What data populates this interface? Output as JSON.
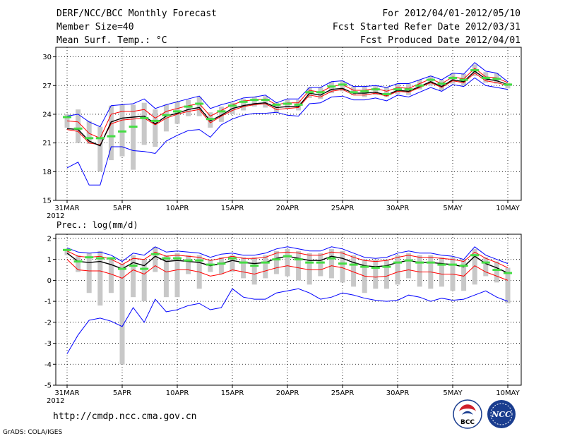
{
  "header": {
    "title": "DERF/NCC/BCC Monthly Forecast",
    "member_size": "Member Size=40",
    "variable": "Mean Surf. Temp.: °C",
    "forecast_period": "For 2012/04/01-2012/05/10",
    "fcst_started": "Fcst Started Refer Date 2012/03/31",
    "fcst_produced": "Fcst Produced Date 2012/04/01"
  },
  "footer": {
    "url": "http://cmdp.ncc.cma.gov.cn",
    "grads": "GrADS: COLA/IGES",
    "logo_bcc": "BCC",
    "logo_ncc": "NCC"
  },
  "colors": {
    "ens_mean": "#000000",
    "bounds": "#0000ff",
    "lower_pct": "#ff0000",
    "spread_bar": "#c8c8c8",
    "obs": "#44dd44",
    "grid": "#000000"
  },
  "chart_data": [
    {
      "type": "line",
      "title": "Mean Surf. Temp.: °C",
      "ylim": [
        15,
        31
      ],
      "yticks": [
        15,
        18,
        21,
        24,
        27,
        30
      ],
      "x_day_offsets": [
        0,
        5,
        10,
        15,
        20,
        25,
        30,
        35,
        40
      ],
      "xtick_labels": [
        "31MAR",
        "5APR",
        "10APR",
        "15APR",
        "20APR",
        "25APR",
        "30APR",
        "5MAY",
        "10MAY"
      ],
      "year_label": "2012",
      "series": [
        {
          "name": "max",
          "values": [
            18.4,
            19.0,
            16.6,
            16.6,
            20.6,
            20.6,
            20.2,
            20.1,
            19.9,
            21.2,
            21.8,
            22.3,
            22.4,
            21.6,
            22.9,
            23.5,
            23.9,
            24.1,
            24.1,
            24.2,
            23.9,
            23.8,
            25.1,
            25.2,
            25.8,
            25.9,
            25.5,
            25.5,
            25.7,
            25.4,
            26.0,
            25.8,
            26.3,
            26.8,
            26.4,
            27.1,
            26.9,
            27.8,
            27.0,
            26.8,
            26.6
          ],
          "role": "lower_bound"
        },
        {
          "name": "min",
          "values": [
            23.8,
            24.0,
            23.2,
            22.7,
            24.9,
            25.0,
            25.1,
            25.6,
            24.6,
            25.0,
            25.3,
            25.6,
            25.9,
            24.6,
            25.0,
            25.3,
            25.7,
            25.8,
            26.0,
            25.2,
            25.6,
            25.6,
            26.8,
            26.8,
            27.4,
            27.5,
            26.9,
            26.9,
            27.0,
            26.8,
            27.2,
            27.2,
            27.6,
            28.0,
            27.6,
            28.3,
            28.2,
            29.4,
            28.5,
            28.3,
            27.4
          ],
          "role": "upper_bound"
        },
        {
          "name": "p10",
          "values": [
            22.4,
            22.2,
            21.0,
            20.8,
            23.0,
            23.4,
            23.5,
            23.6,
            22.9,
            23.6,
            24.0,
            24.3,
            24.5,
            23.1,
            23.8,
            24.4,
            24.8,
            25.0,
            25.1,
            24.5,
            24.6,
            24.7,
            26.0,
            25.8,
            26.4,
            26.6,
            26.0,
            26.0,
            26.2,
            25.9,
            26.4,
            26.3,
            26.8,
            27.3,
            26.8,
            27.5,
            27.3,
            28.3,
            27.5,
            27.3,
            27.0
          ],
          "role": "red"
        },
        {
          "name": "p90",
          "values": [
            23.3,
            23.2,
            22.0,
            21.5,
            24.0,
            24.3,
            24.3,
            24.5,
            23.6,
            24.3,
            24.6,
            24.9,
            25.1,
            23.8,
            24.4,
            25.0,
            25.4,
            25.5,
            25.6,
            25.0,
            25.2,
            25.2,
            26.5,
            26.3,
            26.9,
            27.1,
            26.5,
            26.5,
            26.7,
            26.4,
            26.8,
            26.7,
            27.2,
            27.7,
            27.2,
            27.9,
            27.7,
            28.8,
            27.9,
            27.8,
            27.3
          ],
          "role": "red"
        },
        {
          "name": "ensemble_mean",
          "values": [
            22.5,
            22.4,
            21.2,
            20.7,
            23.2,
            23.6,
            23.7,
            23.8,
            23.0,
            23.8,
            24.1,
            24.5,
            24.7,
            23.3,
            23.9,
            24.6,
            24.9,
            25.1,
            25.2,
            24.7,
            24.8,
            24.8,
            26.2,
            26.0,
            26.6,
            26.7,
            26.2,
            26.2,
            26.3,
            26.0,
            26.5,
            26.4,
            26.9,
            27.4,
            26.9,
            27.6,
            27.4,
            28.5,
            27.7,
            27.5,
            27.1
          ],
          "role": "mean"
        }
      ],
      "bars": {
        "low": [
          22.6,
          21.0,
          20.9,
          18.0,
          19.2,
          19.6,
          18.2,
          20.8,
          20.6,
          22.2,
          23.0,
          23.8,
          23.8,
          22.6,
          23.2,
          24.0,
          24.4,
          24.8,
          24.7,
          24.2,
          24.6,
          24.4,
          25.7,
          25.6,
          26.2,
          26.4,
          26.0,
          25.8,
          26.0,
          25.8,
          26.1,
          26.0,
          26.6,
          27.0,
          26.5,
          27.2,
          27.0,
          28.0,
          27.3,
          27.2,
          26.7
        ],
        "high": [
          24.0,
          24.5,
          23.3,
          22.7,
          24.9,
          25.0,
          25.0,
          25.2,
          24.5,
          25.0,
          25.3,
          25.5,
          25.8,
          24.2,
          24.8,
          25.2,
          25.6,
          25.8,
          25.9,
          25.2,
          25.5,
          25.5,
          26.8,
          26.8,
          27.4,
          27.5,
          26.9,
          26.9,
          27.0,
          26.8,
          27.2,
          27.2,
          27.6,
          28.0,
          27.6,
          28.3,
          28.2,
          29.2,
          28.4,
          28.3,
          27.3
        ]
      },
      "obs": [
        23.7,
        22.5,
        21.5,
        21.5,
        21.7,
        22.2,
        22.7,
        23.6,
        23.3,
        23.9,
        24.3,
        24.8,
        25.1,
        23.5,
        24.3,
        24.9,
        25.3,
        25.5,
        25.5,
        25.0,
        25.1,
        25.0,
        26.3,
        26.3,
        26.9,
        27.1,
        26.3,
        26.4,
        26.6,
        26.1,
        26.6,
        26.6,
        27.0,
        27.6,
        27.2,
        27.8,
        27.6,
        28.6,
        27.8,
        27.7,
        27.1
      ]
    },
    {
      "type": "line",
      "title": "Prec.: log(mm/d)",
      "ylim": [
        -5,
        2.2
      ],
      "yticks": [
        -5,
        -4,
        -3,
        -2,
        -1,
        0,
        1,
        2
      ],
      "x_day_offsets": [
        0,
        5,
        10,
        15,
        20,
        25,
        30,
        35,
        40
      ],
      "xtick_labels": [
        "31MAR",
        "5APR",
        "10APR",
        "15APR",
        "20APR",
        "25APR",
        "30APR",
        "5MAY",
        "10MAY"
      ],
      "year_label": "2012",
      "series": [
        {
          "name": "max",
          "values": [
            1.55,
            1.35,
            1.3,
            1.35,
            1.2,
            0.9,
            1.3,
            1.2,
            1.6,
            1.35,
            1.4,
            1.35,
            1.3,
            1.1,
            1.25,
            1.3,
            1.2,
            1.2,
            1.3,
            1.5,
            1.6,
            1.5,
            1.4,
            1.4,
            1.6,
            1.5,
            1.3,
            1.1,
            1.05,
            1.1,
            1.3,
            1.4,
            1.3,
            1.3,
            1.2,
            1.15,
            1.0,
            1.6,
            1.2,
            1.0,
            0.8
          ],
          "role": "upper_bound"
        },
        {
          "name": "min",
          "values": [
            -3.5,
            -2.6,
            -1.9,
            -1.8,
            -1.95,
            -2.2,
            -1.3,
            -2.0,
            -0.9,
            -1.5,
            -1.4,
            -1.2,
            -1.1,
            -1.4,
            -1.3,
            -0.4,
            -0.8,
            -0.9,
            -0.9,
            -0.6,
            -0.5,
            -0.4,
            -0.6,
            -0.9,
            -0.8,
            -0.6,
            -0.7,
            -0.85,
            -0.95,
            -1.0,
            -0.95,
            -0.7,
            -0.8,
            -1.0,
            -0.85,
            -0.95,
            -0.9,
            -0.7,
            -0.5,
            -0.8,
            -1.0
          ],
          "role": "lower_bound"
        },
        {
          "name": "p10",
          "values": [
            1.0,
            0.5,
            0.45,
            0.45,
            0.3,
            0.1,
            0.5,
            0.3,
            0.7,
            0.4,
            0.5,
            0.5,
            0.4,
            0.2,
            0.3,
            0.5,
            0.4,
            0.3,
            0.45,
            0.6,
            0.7,
            0.6,
            0.5,
            0.5,
            0.7,
            0.6,
            0.4,
            0.2,
            0.15,
            0.2,
            0.4,
            0.5,
            0.4,
            0.4,
            0.3,
            0.3,
            0.2,
            0.7,
            0.4,
            0.2,
            0.0
          ],
          "role": "red"
        },
        {
          "name": "p90",
          "values": [
            1.4,
            1.15,
            1.1,
            1.15,
            1.0,
            0.75,
            1.05,
            1.0,
            1.35,
            1.15,
            1.2,
            1.15,
            1.1,
            0.95,
            1.05,
            1.15,
            1.05,
            1.05,
            1.1,
            1.3,
            1.35,
            1.3,
            1.2,
            1.2,
            1.35,
            1.3,
            1.1,
            0.95,
            0.9,
            0.95,
            1.1,
            1.2,
            1.1,
            1.1,
            1.05,
            1.0,
            0.9,
            1.35,
            1.05,
            0.85,
            0.6
          ],
          "role": "red"
        },
        {
          "name": "ensemble_mean",
          "values": [
            1.3,
            0.9,
            0.85,
            0.9,
            0.75,
            0.55,
            0.85,
            0.7,
            1.15,
            0.9,
            0.95,
            0.9,
            0.85,
            0.7,
            0.8,
            0.95,
            0.85,
            0.8,
            0.85,
            1.05,
            1.15,
            1.05,
            0.95,
            0.95,
            1.15,
            1.05,
            0.85,
            0.7,
            0.65,
            0.7,
            0.85,
            0.95,
            0.85,
            0.85,
            0.8,
            0.75,
            0.65,
            1.15,
            0.8,
            0.6,
            0.35
          ],
          "role": "mean"
        }
      ],
      "bars": {
        "low": [
          1.2,
          0.4,
          -0.6,
          -1.2,
          -0.6,
          -4.0,
          -0.8,
          -1.0,
          0.4,
          -0.8,
          -0.8,
          0.3,
          -0.4,
          0.4,
          0.3,
          0.4,
          0.1,
          -0.2,
          0.1,
          0.3,
          0.2,
          0.0,
          -0.2,
          0.2,
          0.1,
          -0.1,
          -0.3,
          -0.6,
          -0.4,
          -0.4,
          -0.2,
          0.1,
          -0.3,
          -0.4,
          -0.3,
          -0.5,
          -0.5,
          -0.2,
          0.2,
          -0.1,
          -1.1
        ],
        "high": [
          1.5,
          1.2,
          1.3,
          1.4,
          1.1,
          0.8,
          1.2,
          1.0,
          1.6,
          1.2,
          1.3,
          1.2,
          1.2,
          1.0,
          1.1,
          1.2,
          1.1,
          1.1,
          1.2,
          1.4,
          1.5,
          1.4,
          1.3,
          1.3,
          1.5,
          1.4,
          1.2,
          1.0,
          1.0,
          1.0,
          1.2,
          1.3,
          1.2,
          1.2,
          1.1,
          1.1,
          1.0,
          1.5,
          1.1,
          0.9,
          0.6
        ]
      },
      "obs": [
        1.45,
        0.9,
        1.1,
        1.05,
        1.05,
        0.55,
        0.7,
        0.55,
        1.25,
        1.05,
        1.05,
        0.95,
        0.95,
        0.75,
        0.8,
        1.05,
        0.85,
        0.7,
        0.85,
        1.0,
        1.15,
        1.0,
        0.85,
        0.85,
        1.05,
        0.8,
        0.75,
        0.65,
        0.6,
        0.65,
        0.85,
        0.95,
        0.85,
        0.85,
        0.75,
        0.75,
        0.7,
        1.2,
        0.85,
        0.5,
        0.35
      ]
    }
  ]
}
